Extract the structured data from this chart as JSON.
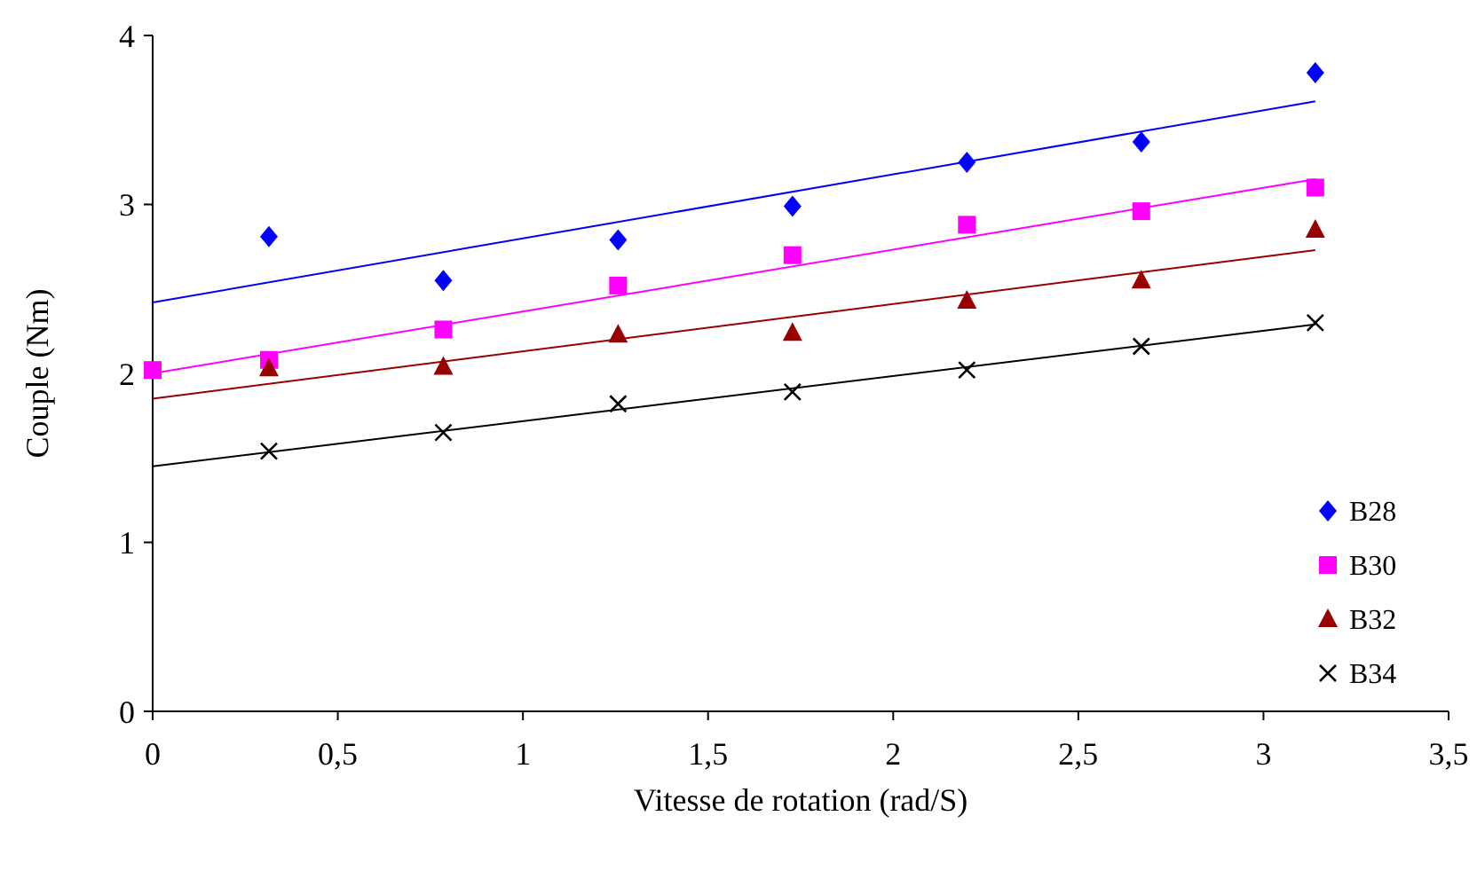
{
  "chart_data": {
    "type": "scatter",
    "xlabel": "Vitesse de rotation (rad/S)",
    "ylabel": "Couple (Nm)",
    "xlim": [
      0,
      3.5
    ],
    "xticks": [
      0,
      {
        "value": 0.5,
        "label": "0,5"
      },
      1,
      {
        "value": 1.5,
        "label": "1,5"
      },
      2,
      {
        "value": 2.5,
        "label": "2,5"
      },
      3,
      {
        "value": 3.5,
        "label": "3,5"
      }
    ],
    "ylim": [
      0,
      4
    ],
    "yticks": [
      0,
      1,
      2,
      3,
      4
    ],
    "grid": false,
    "legend": "right",
    "series": [
      {
        "name": "B28",
        "marker": "diamond",
        "color": "#0000ff",
        "x": [
          0.314,
          0.785,
          1.257,
          1.728,
          2.199,
          2.67,
          3.14
        ],
        "values": [
          2.81,
          2.55,
          2.79,
          2.99,
          3.25,
          3.37,
          3.78
        ]
      },
      {
        "name": "B30",
        "marker": "square",
        "color": "#ff00ff",
        "x": [
          0,
          0.314,
          0.785,
          1.257,
          1.728,
          2.199,
          2.67,
          3.14
        ],
        "values": [
          2.02,
          2.08,
          2.26,
          2.52,
          2.7,
          2.88,
          2.96,
          3.1
        ]
      },
      {
        "name": "B32",
        "marker": "triangle",
        "color": "#990000",
        "x": [
          0.314,
          0.785,
          1.257,
          1.728,
          2.199,
          2.67,
          3.14
        ],
        "values": [
          2.03,
          2.04,
          2.23,
          2.24,
          2.43,
          2.55,
          2.85
        ]
      },
      {
        "name": "B34",
        "marker": "cross",
        "color": "#000000",
        "x": [
          0.314,
          0.785,
          1.257,
          1.728,
          2.199,
          2.67,
          3.14
        ],
        "values": [
          1.54,
          1.65,
          1.82,
          1.89,
          2.02,
          2.16,
          2.3
        ]
      },
      {
        "type": "line",
        "color": "#0000ff",
        "x": [
          0,
          3.14
        ],
        "values": [
          2.42,
          3.61
        ]
      },
      {
        "type": "line",
        "color": "#ff00ff",
        "x": [
          0,
          3.14
        ],
        "values": [
          2.0,
          3.15
        ]
      },
      {
        "type": "line",
        "color": "#990000",
        "x": [
          0,
          3.14
        ],
        "values": [
          1.85,
          2.73
        ]
      },
      {
        "type": "line",
        "color": "#000000",
        "x": [
          0,
          3.14
        ],
        "values": [
          1.45,
          2.29
        ]
      }
    ]
  }
}
